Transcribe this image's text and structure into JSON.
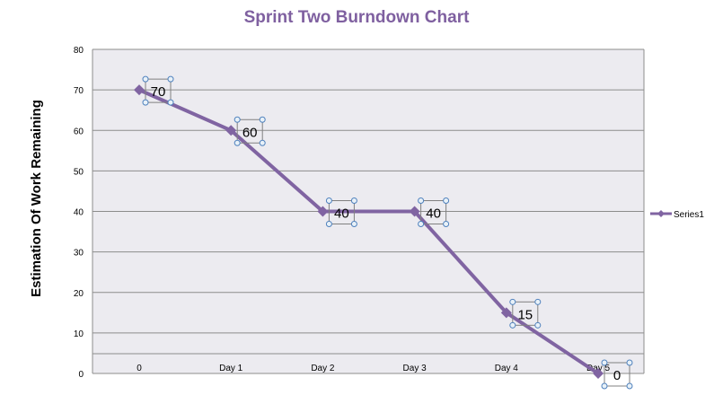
{
  "chart_data": {
    "type": "line",
    "title": "Sprint Two Burndown Chart",
    "xlabel": "",
    "ylabel": "Estimation Of Work Remaining",
    "categories": [
      "0",
      "Day 1",
      "Day 2",
      "Day 3",
      "Day 4",
      "Day 5"
    ],
    "ylim": [
      0,
      80
    ],
    "yticks": [
      0,
      10,
      20,
      30,
      40,
      50,
      60,
      70,
      80
    ],
    "grid": true,
    "legend_position": "right",
    "series": [
      {
        "name": "Series1",
        "values": [
          70,
          60,
          40,
          40,
          15,
          0
        ],
        "data_labels": [
          "70",
          "60",
          "40",
          "40",
          "15",
          "0"
        ],
        "color": "#8064a2"
      }
    ]
  },
  "colors": {
    "title": "#7f60a0",
    "plot_background": "#ecebf0",
    "gridline": "#8c8c8c",
    "series": "#8064a2",
    "selection_handle": "#4f81bd"
  }
}
